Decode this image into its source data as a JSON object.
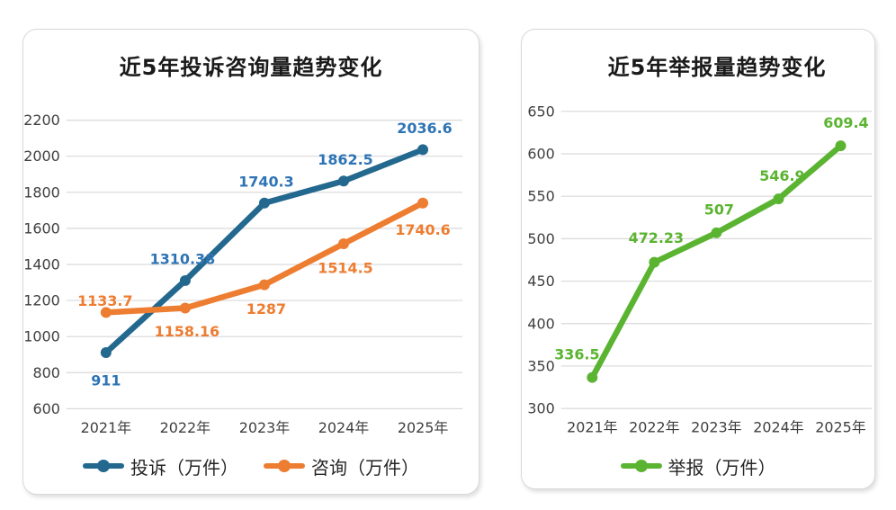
{
  "page": {
    "background": "#ffffff"
  },
  "style": {
    "gridline_color": "#d9d9d9",
    "tick_color": "#3f3f3f",
    "title_color": "#1a1a1a",
    "legend_text_color": "#262626",
    "card_border_color": "#d9d9d9",
    "card_background": "#ffffff"
  },
  "chart_data": [
    {
      "type": "line",
      "title": "近5年投诉咨询量趋势变化",
      "categories": [
        "2021年",
        "2022年",
        "2023年",
        "2024年",
        "2025年"
      ],
      "series": [
        {
          "name": "投诉（万件）",
          "values": [
            911,
            1310.38,
            1740.3,
            1862.5,
            2036.6
          ],
          "color": "#23688e",
          "label_color": "#2e74b5",
          "label_offsets": [
            [
              0,
              31
            ],
            [
              -3,
              -24
            ],
            [
              2,
              -24
            ],
            [
              2,
              -24
            ],
            [
              2,
              -24
            ]
          ]
        },
        {
          "name": "咨询（万件）",
          "values": [
            1133.7,
            1158.16,
            1287,
            1514.5,
            1740.6
          ],
          "color": "#ed7d31",
          "label_color": "#ed7d31",
          "label_offsets": [
            [
              -1,
              -13
            ],
            [
              2,
              26
            ],
            [
              2,
              27
            ],
            [
              2,
              27
            ],
            [
              0,
              30
            ]
          ]
        }
      ],
      "xlabel": "",
      "ylabel": "",
      "ylim": [
        600,
        2200
      ],
      "ytick_step": 200,
      "grid": true,
      "legend_position": "bottom"
    },
    {
      "type": "line",
      "title": "近5年举报量趋势变化",
      "categories": [
        "2021年",
        "2022年",
        "2023年",
        "2024年",
        "2025年"
      ],
      "series": [
        {
          "name": "举报（万件）",
          "values": [
            336.5,
            472.23,
            507,
            546.9,
            609.4
          ],
          "color": "#5bb431",
          "label_color": "#5bb431",
          "label_offsets": [
            [
              -17,
              -26
            ],
            [
              2,
              -27
            ],
            [
              3,
              -26
            ],
            [
              4,
              -26
            ],
            [
              6,
              -26
            ]
          ]
        }
      ],
      "xlabel": "",
      "ylabel": "",
      "ylim": [
        300,
        650
      ],
      "ytick_step": 50,
      "grid": true,
      "legend_position": "bottom"
    }
  ]
}
